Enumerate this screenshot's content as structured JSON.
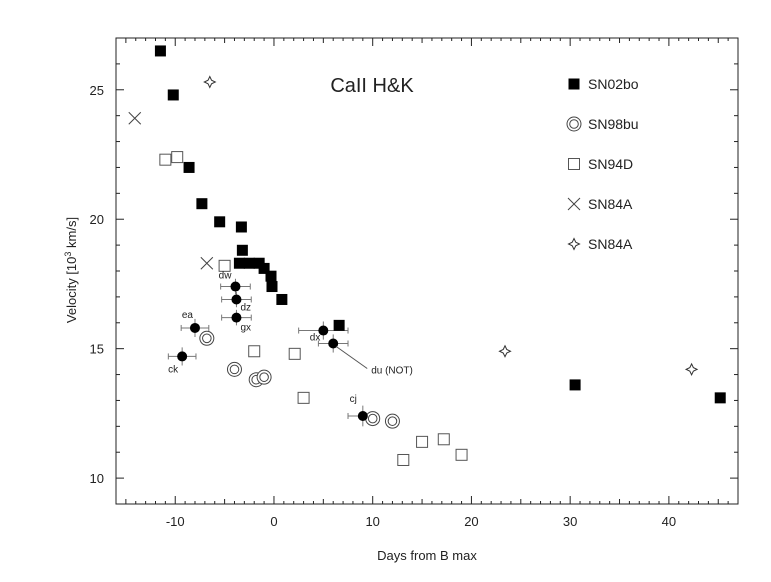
{
  "chart_data": {
    "type": "scatter",
    "title": "CaII H&K",
    "xlabel": "Days from B max",
    "ylabel_main": "Velocity [10",
    "ylabel_sup": "3",
    "ylabel_tail": " km/s]",
    "xlim": [
      -16,
      47
    ],
    "ylim": [
      9,
      27
    ],
    "xticks": [
      -10,
      0,
      10,
      20,
      30,
      40
    ],
    "xtick_labels": [
      "-10",
      "0",
      "10",
      "20",
      "30",
      "40"
    ],
    "yticks": [
      10,
      15,
      20,
      25
    ],
    "ytick_labels": [
      "10",
      "15",
      "20",
      "25"
    ],
    "legend_position": "top-right",
    "legend": [
      {
        "label": "SN02bo",
        "marker": "filled-square"
      },
      {
        "label": "SN98bu",
        "marker": "double-circle"
      },
      {
        "label": "SN94D",
        "marker": "open-square"
      },
      {
        "label": "SN84A",
        "marker": "cross"
      },
      {
        "label": "SN84A",
        "marker": "star"
      }
    ],
    "series": [
      {
        "name": "SN02bo",
        "marker": "filled-square",
        "x": [
          -11.5,
          -10.2,
          -8.6,
          -7.3,
          -5.5,
          -3.3,
          -3.2,
          -3.5,
          -2.5,
          -1.5,
          -1.0,
          -0.3,
          -0.2,
          0.8,
          6.6,
          30.5,
          45.2
        ],
        "y": [
          26.5,
          24.8,
          22.0,
          20.6,
          19.9,
          19.7,
          18.8,
          18.3,
          18.3,
          18.3,
          18.1,
          17.8,
          17.4,
          16.9,
          15.9,
          13.6,
          13.1
        ]
      },
      {
        "name": "SN98bu",
        "marker": "double-circle",
        "x": [
          -6.8,
          -4.0,
          -1.8,
          -1.0,
          10.0,
          12.0
        ],
        "y": [
          15.4,
          14.2,
          13.8,
          13.9,
          12.3,
          12.2
        ]
      },
      {
        "name": "SN94D",
        "marker": "open-square",
        "x": [
          -11.0,
          -9.8,
          -5.0,
          -2.0,
          2.1,
          3.0,
          13.1,
          15.0,
          17.2,
          19.0
        ],
        "y": [
          22.3,
          22.4,
          18.2,
          14.9,
          14.8,
          13.1,
          10.7,
          11.4,
          11.5,
          10.9
        ]
      },
      {
        "name": "SN84A",
        "marker": "cross",
        "x": [
          -14.1,
          -6.8
        ],
        "y": [
          23.9,
          18.3
        ]
      },
      {
        "name": "SN84A",
        "marker": "star",
        "x": [
          -6.5,
          23.4,
          42.3
        ],
        "y": [
          25.3,
          14.9,
          14.2
        ]
      },
      {
        "name": "labeled",
        "marker": "filled-circle",
        "x": [
          -9.3,
          -8.0,
          -3.9,
          -3.8,
          -3.8,
          5.0,
          6.0,
          9.0
        ],
        "y": [
          14.7,
          15.8,
          17.4,
          16.9,
          16.2,
          15.7,
          15.2,
          12.4
        ],
        "xerr": [
          1.4,
          1.4,
          1.5,
          1.5,
          1.5,
          2.5,
          1.5,
          1.5
        ],
        "yerr": [
          0.35,
          0.35,
          0.3,
          0.3,
          0.3,
          0.35,
          0.35,
          0.4
        ],
        "labels": [
          "ck",
          "ea",
          "dw",
          "dz",
          "gx",
          "dx",
          "du (NOT)",
          "cj"
        ]
      }
    ]
  }
}
